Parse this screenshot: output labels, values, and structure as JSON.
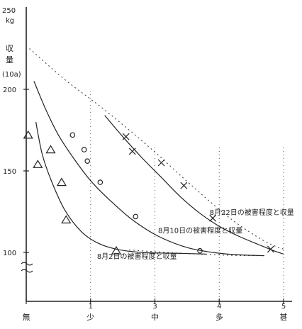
{
  "chart_data": {
    "type": "scatter",
    "y_unit_top": "kg",
    "y_value_top": "250",
    "ylabel_main": "収量",
    "ylabel_sub": "(10a)",
    "yticks": [
      "100",
      "150",
      "200"
    ],
    "ylim": [
      75,
      250
    ],
    "xlim": [
      0,
      5
    ],
    "xticks": [
      {
        "num": "",
        "label": "無",
        "x": 0
      },
      {
        "num": "1",
        "label": "少",
        "x": 1
      },
      {
        "num": "3",
        "label": "中",
        "x": 2
      },
      {
        "num": "4",
        "label": "多",
        "x": 3
      },
      {
        "num": "5",
        "label": "甚",
        "x": 4
      }
    ],
    "vertical_guides_x": [
      1,
      2,
      3,
      4
    ],
    "series": [
      {
        "name": "8月2日の被害程度と収量",
        "marker": "triangle",
        "points": [
          [
            0.03,
            172
          ],
          [
            0.18,
            154
          ],
          [
            0.38,
            163
          ],
          [
            0.55,
            143
          ],
          [
            0.62,
            120
          ],
          [
            1.4,
            101
          ]
        ],
        "curve": [
          [
            0.15,
            180
          ],
          [
            0.25,
            160
          ],
          [
            0.4,
            143
          ],
          [
            0.6,
            126
          ],
          [
            0.85,
            113
          ],
          [
            1.1,
            106
          ],
          [
            1.4,
            102
          ],
          [
            1.8,
            100
          ],
          [
            2.3,
            99.5
          ],
          [
            2.8,
            99
          ]
        ]
      },
      {
        "name": "8月10日の被害程度と収量",
        "marker": "circle",
        "points": [
          [
            0.72,
            172
          ],
          [
            0.9,
            163
          ],
          [
            0.95,
            156
          ],
          [
            1.15,
            143
          ],
          [
            1.7,
            122
          ],
          [
            2.7,
            101
          ]
        ],
        "curve": [
          [
            0.12,
            205
          ],
          [
            0.3,
            188
          ],
          [
            0.5,
            172
          ],
          [
            0.75,
            157
          ],
          [
            1.0,
            144
          ],
          [
            1.3,
            132
          ],
          [
            1.65,
            120
          ],
          [
            2.05,
            110
          ],
          [
            2.5,
            103
          ],
          [
            2.9,
            100
          ],
          [
            3.3,
            98.5
          ],
          [
            3.7,
            98
          ]
        ]
      },
      {
        "name": "8月22日の被害程度と収量",
        "marker": "x",
        "points": [
          [
            1.55,
            171
          ],
          [
            1.65,
            162
          ],
          [
            2.1,
            155
          ],
          [
            2.45,
            141
          ],
          [
            2.9,
            121
          ],
          [
            3.8,
            102
          ]
        ],
        "curve": [
          [
            1.22,
            184
          ],
          [
            1.5,
            171
          ],
          [
            1.8,
            158
          ],
          [
            2.1,
            146
          ],
          [
            2.4,
            134
          ],
          [
            2.7,
            124
          ],
          [
            3.0,
            116
          ],
          [
            3.3,
            110
          ],
          [
            3.6,
            105
          ],
          [
            3.85,
            101
          ],
          [
            4.0,
            99
          ]
        ]
      }
    ],
    "upper_guide": [
      [
        0.05,
        225
      ],
      [
        0.6,
        206
      ],
      [
        1.2,
        188
      ],
      [
        1.9,
        165
      ],
      [
        2.6,
        140
      ],
      [
        3.2,
        120
      ],
      [
        3.7,
        107
      ],
      [
        4.0,
        102
      ]
    ],
    "annotations": [
      {
        "series": 0,
        "text": "8月2日の被害程度と収量",
        "at": [
          1.1,
          96
        ]
      },
      {
        "series": 1,
        "text": "8月10日の被害程度と収量",
        "at": [
          2.05,
          112
        ]
      },
      {
        "series": 2,
        "text": "8月22日の被害程度と収量",
        "at": [
          2.85,
          123
        ]
      }
    ]
  }
}
